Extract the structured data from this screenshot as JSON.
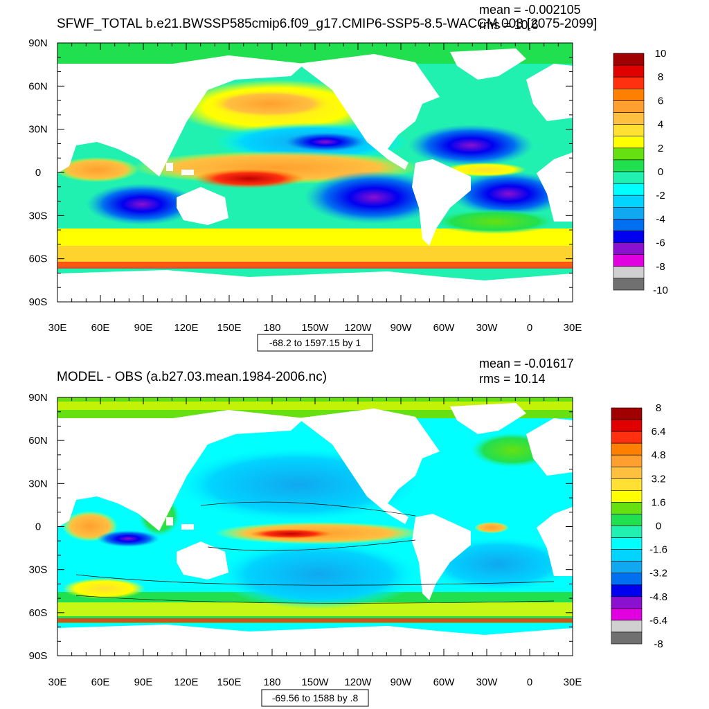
{
  "panels": [
    {
      "id": "top",
      "title": "SFWF_TOTAL b.e21.BWSSP585cmip6.f09_g17.CMIP6-SSP5-8.5-WACCM.003 [2075-2099]",
      "mean_label": "mean = -0.002105",
      "rms_label": "rms = 10.6",
      "range_label": "-68.2 to 1597.15 by 1",
      "lat_ticks": [
        "90N",
        "60N",
        "30N",
        "0",
        "30S",
        "60S",
        "90S"
      ],
      "lon_ticks": [
        "30E",
        "60E",
        "90E",
        "120E",
        "150E",
        "180",
        "150W",
        "120W",
        "90W",
        "60W",
        "30W",
        "0",
        "30E"
      ],
      "colorbar": {
        "labels": [
          "10",
          "8",
          "6",
          "4",
          "2",
          "0",
          "-2",
          "-4",
          "-6",
          "-8",
          "-10"
        ],
        "colors": [
          "#a00000",
          "#e00000",
          "#ff3010",
          "#ff7f00",
          "#ff9f30",
          "#ffc040",
          "#ffe033",
          "#ffff00",
          "#66e010",
          "#20e050",
          "#20f0b0",
          "#00ffff",
          "#00d4ff",
          "#10a8f0",
          "#0070f0",
          "#0000f0",
          "#8c10d0",
          "#e000e0",
          "#d0d0d0",
          "#707070"
        ]
      }
    },
    {
      "id": "bottom",
      "title": "MODEL - OBS (a.b27.03.mean.1984-2006.nc)",
      "mean_label": "mean = -0.01617",
      "rms_label": "rms = 10.14",
      "range_label": "-69.56 to 1588 by .8",
      "lat_ticks": [
        "90N",
        "60N",
        "30N",
        "0",
        "30S",
        "60S",
        "90S"
      ],
      "lon_ticks": [
        "30E",
        "60E",
        "90E",
        "120E",
        "150E",
        "180",
        "150W",
        "120W",
        "90W",
        "60W",
        "30W",
        "0",
        "30E"
      ],
      "colorbar": {
        "labels": [
          "8",
          "6.4",
          "4.8",
          "3.2",
          "1.6",
          "0",
          "-1.6",
          "-3.2",
          "-4.8",
          "-6.4",
          "-8"
        ],
        "colors": [
          "#a00000",
          "#e00000",
          "#ff3010",
          "#ff7f00",
          "#ff9f30",
          "#ffc040",
          "#ffe033",
          "#ffff00",
          "#66e010",
          "#20e050",
          "#20f0b0",
          "#00ffff",
          "#00d4ff",
          "#10a8f0",
          "#0070f0",
          "#0000f0",
          "#8c10d0",
          "#e000e0",
          "#d0d0d0",
          "#707070"
        ]
      }
    }
  ]
}
